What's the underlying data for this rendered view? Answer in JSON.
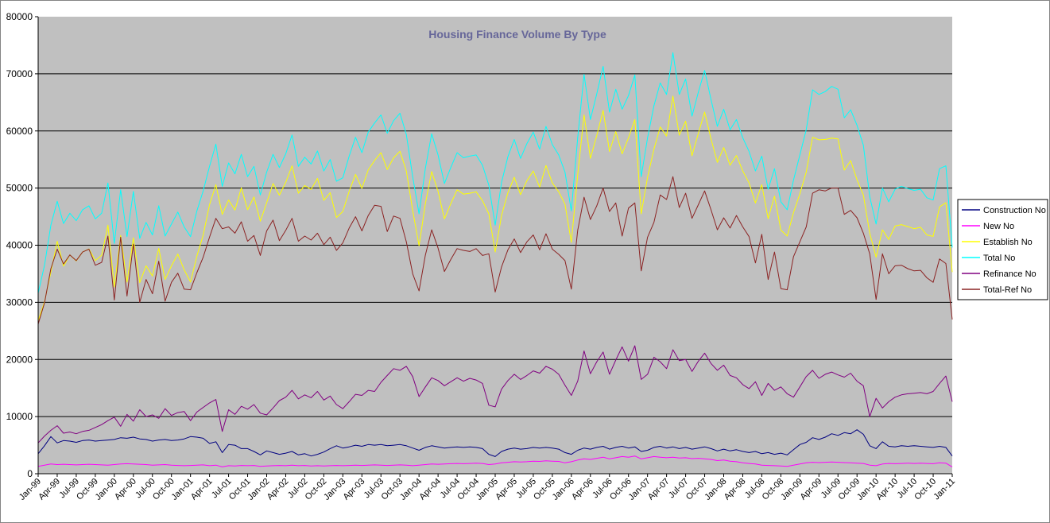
{
  "chart_data": {
    "type": "line",
    "title": "Housing Finance Volume By Type",
    "title_color": "#666699",
    "plot_bg": "#C0C0C0",
    "page_bg": "#FFFFFF",
    "grid": true,
    "legend_position": "right",
    "ylim": [
      0,
      80000
    ],
    "y_ticks": [
      0,
      10000,
      20000,
      30000,
      40000,
      50000,
      60000,
      70000,
      80000
    ],
    "months": 145,
    "start": "Jan-99",
    "end": "Jan-11",
    "x_tick_every_months": 3,
    "x_tick_labels": [
      "Jan-99",
      "Apr-99",
      "Jul-99",
      "Oct-99",
      "Jan-00",
      "Apr-00",
      "Jul-00",
      "Oct-00",
      "Jan-01",
      "Apr-01",
      "Jul-01",
      "Oct-01",
      "Jan-02",
      "Apr-02",
      "Jul-02",
      "Oct-02",
      "Jan-03",
      "Apr-03",
      "Jul-03",
      "Oct-03",
      "Jan-04",
      "Apr-04",
      "Jul-04",
      "Oct-04",
      "Jan-05",
      "Apr-05",
      "Jul-05",
      "Oct-05",
      "Jan-06",
      "Apr-06",
      "Jul-06",
      "Oct-06",
      "Jan-07",
      "Apr-07",
      "Jul-07",
      "Oct-07",
      "Jan-08",
      "Apr-08",
      "Jul-08",
      "Oct-08",
      "Jan-09",
      "Apr-09",
      "Jul-09",
      "Oct-09",
      "Jan-10",
      "Apr-10",
      "Jul-10",
      "Oct-10",
      "Jan-11"
    ],
    "series": [
      {
        "label": "Construction No",
        "color": "#000080",
        "values": [
          3500,
          4900,
          6500,
          5400,
          5800,
          5700,
          5500,
          5800,
          5900,
          5700,
          5800,
          5900,
          6000,
          6300,
          6200,
          6400,
          6100,
          6000,
          5700,
          5900,
          6000,
          5800,
          5900,
          6100,
          6500,
          6400,
          6200,
          5300,
          5600,
          3700,
          5100,
          5000,
          4400,
          4400,
          3900,
          3300,
          4000,
          3700,
          3400,
          3600,
          3900,
          3300,
          3500,
          3100,
          3400,
          3800,
          4400,
          4900,
          4500,
          4700,
          5000,
          4800,
          5100,
          5000,
          5100,
          4900,
          5000,
          5100,
          4900,
          4500,
          4100,
          4600,
          4900,
          4700,
          4500,
          4600,
          4700,
          4600,
          4700,
          4600,
          4400,
          3400,
          3000,
          3900,
          4300,
          4500,
          4300,
          4400,
          4600,
          4500,
          4600,
          4500,
          4300,
          3700,
          3400,
          4100,
          4500,
          4300,
          4600,
          4800,
          4300,
          4600,
          4800,
          4500,
          4700,
          3900,
          4100,
          4600,
          4800,
          4500,
          4700,
          4400,
          4600,
          4300,
          4500,
          4700,
          4400,
          4000,
          4300,
          4000,
          4200,
          3900,
          3700,
          3900,
          3500,
          3700,
          3400,
          3600,
          3300,
          4200,
          5100,
          5500,
          6300,
          6000,
          6400,
          7000,
          6700,
          7200,
          7000,
          7700,
          6900,
          4900,
          4400,
          5600,
          4800,
          4700,
          4900,
          4800,
          4900,
          4800,
          4700,
          4600,
          4800,
          4600,
          3100
        ]
      },
      {
        "label": "New No",
        "color": "#FF00FF",
        "values": [
          1300,
          1500,
          1700,
          1600,
          1650,
          1600,
          1550,
          1600,
          1650,
          1600,
          1550,
          1500,
          1600,
          1700,
          1750,
          1700,
          1650,
          1600,
          1500,
          1550,
          1600,
          1500,
          1450,
          1400,
          1450,
          1500,
          1550,
          1400,
          1500,
          1200,
          1400,
          1350,
          1450,
          1400,
          1450,
          1300,
          1350,
          1400,
          1450,
          1400,
          1500,
          1400,
          1450,
          1350,
          1400,
          1350,
          1400,
          1450,
          1400,
          1450,
          1500,
          1450,
          1500,
          1550,
          1500,
          1450,
          1500,
          1550,
          1500,
          1400,
          1500,
          1600,
          1700,
          1650,
          1700,
          1750,
          1800,
          1750,
          1800,
          1850,
          1800,
          1600,
          1700,
          1900,
          2000,
          2100,
          2050,
          2100,
          2200,
          2150,
          2250,
          2200,
          2150,
          1900,
          2100,
          2400,
          2600,
          2500,
          2700,
          2900,
          2600,
          2800,
          3000,
          2900,
          3100,
          2600,
          2800,
          3000,
          2900,
          2800,
          2900,
          2750,
          2800,
          2650,
          2700,
          2600,
          2500,
          2300,
          2400,
          2200,
          2100,
          1900,
          1800,
          1700,
          1500,
          1450,
          1400,
          1350,
          1300,
          1500,
          1700,
          1900,
          2000,
          1950,
          2000,
          2050,
          2000,
          1950,
          1900,
          1850,
          1800,
          1500,
          1400,
          1700,
          1800,
          1750,
          1800,
          1850,
          1800,
          1850,
          1800,
          1750,
          1900,
          1850,
          1200
        ]
      },
      {
        "label": "Establish No",
        "color": "#FFFF00",
        "values": [
          26800,
          30100,
          35300,
          40700,
          36350,
          38300,
          37250,
          38800,
          39350,
          37300,
          38250,
          43500,
          32700,
          41700,
          33550,
          41300,
          33450,
          36400,
          34600,
          39450,
          34000,
          36400,
          38450,
          35700,
          33550,
          38100,
          41750,
          47100,
          50600,
          45400,
          47900,
          46150,
          50050,
          46200,
          48450,
          44200,
          47450,
          50800,
          48750,
          51000,
          53900,
          49100,
          50450,
          49750,
          51700,
          47850,
          49200,
          44850,
          45900,
          49450,
          52400,
          49950,
          53200,
          54850,
          56200,
          53250,
          55300,
          56450,
          53000,
          46100,
          39900,
          47300,
          52900,
          49450,
          44600,
          47250,
          49700,
          48950,
          49100,
          49350,
          47800,
          45500,
          38800,
          45200,
          49200,
          51900,
          48850,
          51300,
          53000,
          50150,
          53950,
          50900,
          49350,
          47200,
          40500,
          52300,
          62800,
          55200,
          59200,
          63600,
          56400,
          59900,
          56000,
          58800,
          62000,
          45500,
          51900,
          56800,
          60700,
          59100,
          66100,
          59250,
          61700,
          55650,
          59600,
          63300,
          58600,
          54500,
          57100,
          54000,
          55700,
          53000,
          50900,
          47400,
          50600,
          44650,
          48600,
          42650,
          41600,
          45700,
          49000,
          52800,
          58900,
          58450,
          58500,
          58750,
          58600,
          53150,
          54800,
          51450,
          48800,
          42100,
          37900,
          42700,
          41000,
          43350,
          43600,
          43250,
          42900,
          43150,
          41800,
          41550,
          46700,
          47450,
          35300
        ]
      },
      {
        "label": "Total No",
        "color": "#00FFFF",
        "values": [
          31600,
          36500,
          43500,
          47700,
          43800,
          45600,
          44300,
          46200,
          46900,
          44600,
          45600,
          50900,
          40300,
          49700,
          41500,
          49400,
          41200,
          44000,
          41800,
          46900,
          41600,
          43700,
          45800,
          43200,
          41500,
          46000,
          49500,
          53800,
          57700,
          50300,
          54400,
          52500,
          55900,
          52000,
          53800,
          48800,
          52800,
          55900,
          53600,
          56000,
          59300,
          53800,
          55400,
          54200,
          56500,
          53000,
          55000,
          51200,
          51800,
          55600,
          58900,
          56200,
          59800,
          61400,
          62800,
          59600,
          61800,
          63100,
          59400,
          52000,
          45500,
          53500,
          59500,
          55800,
          50800,
          53600,
          56200,
          55300,
          55600,
          55800,
          54000,
          50500,
          43500,
          51000,
          55500,
          58500,
          55200,
          57800,
          59800,
          56800,
          60800,
          57600,
          55800,
          52800,
          46000,
          58800,
          69900,
          62000,
          66500,
          71300,
          63300,
          67300,
          63800,
          66200,
          69800,
          52000,
          58800,
          64400,
          68400,
          66400,
          73700,
          66400,
          69100,
          62600,
          66800,
          70600,
          65500,
          60800,
          63800,
          60200,
          62000,
          58800,
          56400,
          53000,
          55600,
          49800,
          53400,
          47600,
          46200,
          51400,
          55800,
          60200,
          67200,
          66400,
          66900,
          67800,
          67300,
          62300,
          63700,
          61000,
          57500,
          48500,
          43700,
          50000,
          47600,
          49800,
          50300,
          49900,
          49600,
          49800,
          48300,
          47900,
          53400,
          53900,
          39600
        ]
      },
      {
        "label": "Refinance No",
        "color": "#800080",
        "values": [
          5400,
          6600,
          7600,
          8400,
          7100,
          7300,
          7000,
          7400,
          7600,
          8100,
          8600,
          9300,
          9900,
          8300,
          10400,
          9200,
          11200,
          10000,
          10300,
          9700,
          11400,
          10200,
          10700,
          10900,
          9300,
          10800,
          11600,
          12400,
          13000,
          7400,
          11200,
          10400,
          11800,
          11300,
          12100,
          10600,
          10300,
          11500,
          12800,
          13400,
          14600,
          13100,
          13800,
          13300,
          14400,
          12900,
          13600,
          12100,
          11400,
          12600,
          13900,
          13700,
          14600,
          14400,
          16000,
          17200,
          18400,
          18100,
          18800,
          17000,
          13500,
          15200,
          16800,
          16300,
          15400,
          16100,
          16800,
          16200,
          16700,
          16400,
          15800,
          12000,
          11700,
          14800,
          16300,
          17400,
          16500,
          17200,
          18000,
          17600,
          18800,
          18300,
          17400,
          15500,
          13700,
          16200,
          21500,
          17500,
          19600,
          21300,
          17400,
          19900,
          22200,
          19700,
          22400,
          16500,
          17400,
          20400,
          19600,
          18400,
          21700,
          19800,
          20000,
          17900,
          19700,
          21100,
          19300,
          18100,
          19000,
          17200,
          16800,
          15600,
          14900,
          16100,
          13700,
          15800,
          14600,
          15200,
          14000,
          13400,
          15200,
          17000,
          18100,
          16700,
          17400,
          17800,
          17300,
          16900,
          17600,
          16200,
          15400,
          10000,
          13200,
          11500,
          12600,
          13400,
          13800,
          14000,
          14100,
          14200,
          14000,
          14400,
          15800,
          17100,
          12600
        ]
      },
      {
        "label": "Total-Ref No",
        "color": "#8B2323",
        "values": [
          26200,
          29900,
          35900,
          39300,
          36700,
          38300,
          37300,
          38800,
          39300,
          36500,
          37000,
          41600,
          30400,
          41400,
          31100,
          40200,
          30000,
          34000,
          31500,
          37200,
          30200,
          33500,
          35100,
          32300,
          32200,
          35200,
          37900,
          41400,
          44700,
          42900,
          43200,
          42100,
          44100,
          40700,
          41700,
          38200,
          42500,
          44400,
          40800,
          42600,
          44700,
          40700,
          41600,
          40900,
          42100,
          40100,
          41400,
          39100,
          40400,
          43000,
          45000,
          42500,
          45200,
          47000,
          46800,
          42400,
          45100,
          44700,
          40600,
          35000,
          32000,
          38300,
          42700,
          39500,
          35400,
          37500,
          39400,
          39100,
          38900,
          39400,
          38200,
          38500,
          31800,
          36200,
          39200,
          41100,
          38700,
          40600,
          41800,
          39200,
          42000,
          39300,
          38400,
          37300,
          32300,
          42600,
          48400,
          44500,
          46900,
          50000,
          45900,
          47400,
          41600,
          46500,
          47400,
          35500,
          41400,
          44000,
          48800,
          48000,
          52000,
          46600,
          49100,
          44700,
          47100,
          49500,
          46200,
          42700,
          44800,
          43000,
          45200,
          43200,
          41500,
          36900,
          41900,
          34000,
          38800,
          32400,
          32200,
          38000,
          40600,
          43200,
          49100,
          49700,
          49500,
          50000,
          50000,
          45400,
          46100,
          44800,
          42100,
          38500,
          30500,
          38500,
          35000,
          36400,
          36500,
          35900,
          35500,
          35600,
          34300,
          33500,
          37600,
          36800,
          27000
        ]
      }
    ]
  }
}
